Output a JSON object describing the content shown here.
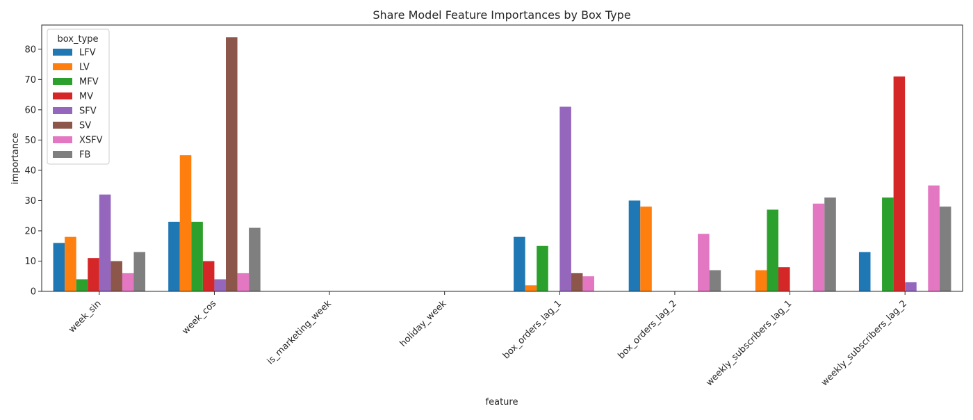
{
  "chart_data": {
    "type": "bar",
    "title": "Share Model Feature Importances by Box Type",
    "xlabel": "feature",
    "ylabel": "importance",
    "ylim": [
      0,
      88
    ],
    "yticks": [
      0,
      10,
      20,
      30,
      40,
      50,
      60,
      70,
      80
    ],
    "grid": false,
    "legend": {
      "title": "box_type",
      "placement": "top-left"
    },
    "categories": [
      "week_sin",
      "week_cos",
      "is_marketing_week",
      "holiday_week",
      "box_orders_lag_1",
      "box_orders_lag_2",
      "weekly_subscribers_lag_1",
      "weekly_subscribers_lag_2"
    ],
    "series": [
      {
        "name": "LFV",
        "color": "#1f77b4",
        "values": [
          16,
          23,
          0,
          0,
          18,
          30,
          0,
          13
        ]
      },
      {
        "name": "LV",
        "color": "#ff7f0e",
        "values": [
          18,
          45,
          0,
          0,
          2,
          28,
          7,
          0
        ]
      },
      {
        "name": "MFV",
        "color": "#2ca02c",
        "values": [
          4,
          23,
          0,
          0,
          15,
          0,
          27,
          31
        ]
      },
      {
        "name": "MV",
        "color": "#d62728",
        "values": [
          11,
          10,
          0,
          0,
          0,
          0,
          8,
          71
        ]
      },
      {
        "name": "SFV",
        "color": "#9467bd",
        "values": [
          32,
          4,
          0,
          0,
          61,
          0,
          0,
          3
        ]
      },
      {
        "name": "SV",
        "color": "#8c564b",
        "values": [
          10,
          84,
          0,
          0,
          6,
          0,
          0,
          0
        ]
      },
      {
        "name": "XSFV",
        "color": "#e377c2",
        "values": [
          6,
          6,
          0,
          0,
          5,
          19,
          29,
          35
        ]
      },
      {
        "name": "FB",
        "color": "#7f7f7f",
        "values": [
          13,
          21,
          0,
          0,
          0,
          7,
          31,
          28
        ]
      }
    ]
  }
}
